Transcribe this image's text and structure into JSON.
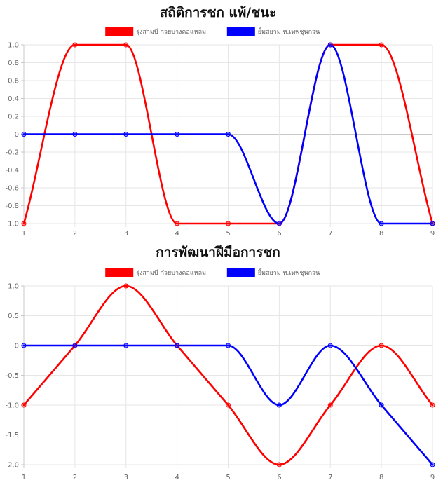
{
  "chart_data": [
    {
      "type": "line",
      "title": "สถิติการชก แพ้/ชนะ",
      "categories": [
        "1",
        "2",
        "3",
        "4",
        "5",
        "6",
        "7",
        "8",
        "9"
      ],
      "series": [
        {
          "name": "รุ่งสามบี ก๋วยบางคอแหลม",
          "color": "#ff0000",
          "values": [
            -1,
            1,
            1,
            -1,
            -1,
            -1,
            1,
            1,
            -1
          ]
        },
        {
          "name": "ยิ้มสยาม ท.เทพชุนกวน",
          "color": "#0000ff",
          "values": [
            0,
            0,
            0,
            0,
            0,
            -1,
            1,
            -1,
            -1
          ]
        }
      ],
      "ylim": [
        -1,
        1
      ],
      "yticks": [
        "1.0",
        "0.8",
        "0.6",
        "0.4",
        "0.2",
        "0",
        "-0.2",
        "-0.4",
        "-0.6",
        "-0.8",
        "-1.0"
      ],
      "ytick_values": [
        1,
        0.8,
        0.6,
        0.4,
        0.2,
        0,
        -0.2,
        -0.4,
        -0.6,
        -0.8,
        -1
      ],
      "legend": "top-center",
      "grid": true
    },
    {
      "type": "line",
      "title": "การพัฒนาฝีมือการชก",
      "categories": [
        "1",
        "2",
        "3",
        "4",
        "5",
        "6",
        "7",
        "8",
        "9"
      ],
      "series": [
        {
          "name": "รุ่งสามบี ก๋วยบางคอแหลม",
          "color": "#ff0000",
          "values": [
            -1,
            0,
            1,
            0,
            -1,
            -2,
            -1,
            0,
            -1
          ]
        },
        {
          "name": "ยิ้มสยาม ท.เทพชุนกวน",
          "color": "#0000ff",
          "values": [
            0,
            0,
            0,
            0,
            0,
            -1,
            0,
            -1,
            -2
          ]
        }
      ],
      "ylim": [
        -2,
        1
      ],
      "yticks": [
        "1.0",
        "0.5",
        "0",
        "-0.5",
        "-1.0",
        "-1.5",
        "-2.0"
      ],
      "ytick_values": [
        1,
        0.5,
        0,
        -0.5,
        -1,
        -1.5,
        -2
      ],
      "legend": "top-center",
      "grid": true
    }
  ]
}
